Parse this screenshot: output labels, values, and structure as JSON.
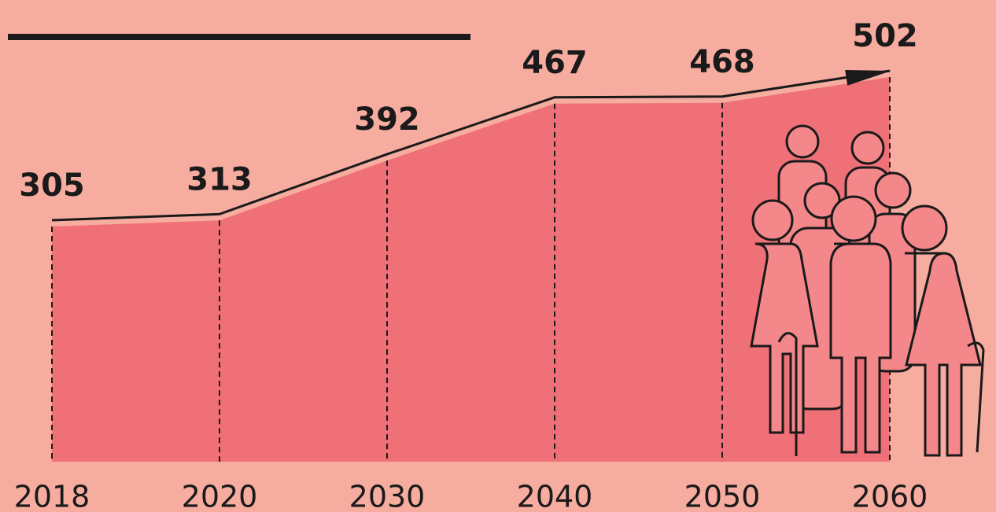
{
  "chart_data": {
    "type": "area",
    "categories": [
      "2018",
      "2020",
      "2030",
      "2040",
      "2050",
      "2060"
    ],
    "values": [
      305,
      313,
      392,
      467,
      468,
      502
    ],
    "color": "#f07078",
    "line_color": "#1a1a1a"
  }
}
